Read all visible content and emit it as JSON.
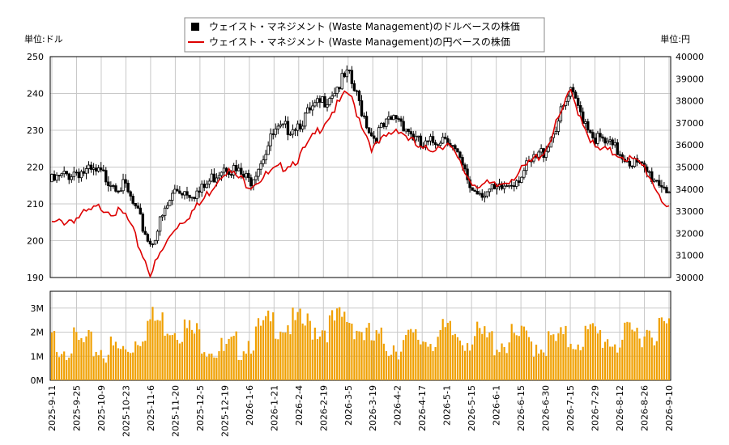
{
  "legend": {
    "usd_label": "ウェイスト・マネジメント (Waste Management)のドルベースの株価",
    "jpy_label": "ウェイスト・マネジメント (Waste Management)の円ベースの株価"
  },
  "axes": {
    "left_unit": "単位:ドル",
    "right_unit": "単位:円"
  },
  "colors": {
    "usd_candle": "#000000",
    "jpy_line": "#dd0000",
    "volume_bar": "#f0a000",
    "grid": "#c8c8c8"
  },
  "chart_data": [
    {
      "type": "candlestick-line",
      "name": "price",
      "left_axis": {
        "ylim": [
          190,
          250
        ],
        "ticks": [
          "190",
          "200",
          "210",
          "220",
          "230",
          "240",
          "250"
        ]
      },
      "right_axis": {
        "ylim": [
          30000,
          40000
        ],
        "ticks": [
          "30000",
          "31000",
          "32000",
          "33000",
          "34000",
          "35000",
          "36000",
          "37000",
          "38000",
          "39000",
          "40000"
        ]
      },
      "x": [
        "2025-9-11",
        "2025-9-25",
        "2025-10-9",
        "2025-10-23",
        "2025-11-6",
        "2025-11-20",
        "2025-12-5",
        "2025-12-19",
        "2026-1-6",
        "2026-1-21",
        "2026-2-4",
        "2026-2-19",
        "2026-3-5",
        "2026-3-19",
        "2026-4-2",
        "2026-4-17",
        "2026-5-1",
        "2026-5-15",
        "2026-6-1",
        "2026-6-15",
        "2026-6-30",
        "2026-7-15",
        "2026-7-29",
        "2026-8-12",
        "2026-8-26",
        "2026-9-10"
      ],
      "usd_close": [
        216,
        219,
        218,
        214,
        199,
        214,
        213,
        221,
        216,
        229,
        232,
        238,
        245,
        228,
        234,
        225,
        229,
        214,
        213,
        218,
        225,
        240,
        228,
        224,
        219,
        214
      ],
      "jpy_close": [
        32400,
        32700,
        33200,
        32800,
        30200,
        32300,
        33300,
        34900,
        34200,
        34800,
        35400,
        37000,
        38400,
        35800,
        36800,
        35700,
        36100,
        34300,
        34100,
        34800,
        35800,
        38400,
        35800,
        35600,
        35000,
        33000
      ]
    },
    {
      "type": "bar",
      "name": "volume",
      "ylim": [
        0,
        3700000
      ],
      "ticks": [
        "0M",
        "1M",
        "2M",
        "3M"
      ],
      "x": [
        "2025-9-11",
        "2025-9-25",
        "2025-10-9",
        "2025-10-23",
        "2025-11-6",
        "2025-11-20",
        "2025-12-5",
        "2025-12-19",
        "2026-1-6",
        "2026-1-21",
        "2026-2-4",
        "2026-2-19",
        "2026-3-5",
        "2026-3-19",
        "2026-4-2",
        "2026-4-17",
        "2026-5-1",
        "2026-5-15",
        "2026-6-1",
        "2026-6-15",
        "2026-6-30",
        "2026-7-15",
        "2026-7-29",
        "2026-8-12",
        "2026-8-26",
        "2026-9-10"
      ],
      "values": [
        1600000,
        1500000,
        1300000,
        1200000,
        2500000,
        2300000,
        1800000,
        1100000,
        1700000,
        2400000,
        2300000,
        2200000,
        2600000,
        1600000,
        1500000,
        1700000,
        1900000,
        1800000,
        1600000,
        1700000,
        1500000,
        1700000,
        1900000,
        1600000,
        2100000,
        2200000
      ]
    }
  ]
}
